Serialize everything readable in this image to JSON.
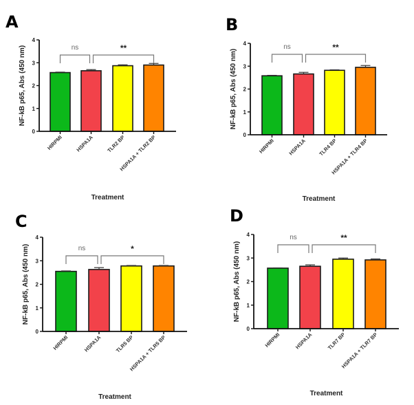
{
  "chart_data": [
    {
      "type": "bar",
      "panel": "A",
      "categories": [
        "HIRPMI",
        "HSPA1A",
        "TLR2 BP",
        "HSPA1A + TLR2 BP"
      ],
      "values": [
        2.57,
        2.65,
        2.87,
        2.9
      ],
      "errors": [
        0.02,
        0.05,
        0.04,
        0.07
      ],
      "colors": [
        "#0cb81a",
        "#f2424a",
        "#ffff00",
        "#ff8400"
      ],
      "xlabel": "Treatment",
      "ylabel": "NF-kB p65, Abs (450 nm)",
      "ylim": [
        0,
        4
      ],
      "yticks": [
        "0",
        "1",
        "2",
        "3",
        "4"
      ],
      "significance": [
        {
          "from": 0,
          "to": 1,
          "label": "ns"
        },
        {
          "from": 1,
          "to": 3,
          "label": "**"
        }
      ]
    },
    {
      "type": "bar",
      "panel": "B",
      "categories": [
        "HIRPMI",
        "HSPA1A",
        "TLR4 BP",
        "HSPA1A + TLR4 BP"
      ],
      "values": [
        2.58,
        2.66,
        2.82,
        2.95
      ],
      "errors": [
        0.02,
        0.07,
        0.02,
        0.08
      ],
      "colors": [
        "#0cb81a",
        "#f2424a",
        "#ffff00",
        "#ff8400"
      ],
      "xlabel": "Treatment",
      "ylabel": "NF-kB p65, Abs (450 nm)",
      "ylim": [
        0,
        4
      ],
      "yticks": [
        "0",
        "1",
        "2",
        "3",
        "4"
      ],
      "significance": [
        {
          "from": 0,
          "to": 1,
          "label": "ns"
        },
        {
          "from": 1,
          "to": 3,
          "label": "**"
        }
      ]
    },
    {
      "type": "bar",
      "panel": "C",
      "categories": [
        "HIRPMI",
        "HSPA1A",
        "TLR5 BP",
        "HSPA1A + TLR5 BP"
      ],
      "values": [
        2.55,
        2.63,
        2.78,
        2.78
      ],
      "errors": [
        0.02,
        0.08,
        0.02,
        0.02
      ],
      "colors": [
        "#0cb81a",
        "#f2424a",
        "#ffff00",
        "#ff8400"
      ],
      "xlabel": "Treatment",
      "ylabel": "NF-kB p65, Abs (450 nm)",
      "ylim": [
        0,
        4
      ],
      "yticks": [
        "0",
        "1",
        "2",
        "3",
        "4"
      ],
      "significance": [
        {
          "from": 0,
          "to": 1,
          "label": "ns"
        },
        {
          "from": 1,
          "to": 3,
          "label": "*"
        }
      ]
    },
    {
      "type": "bar",
      "panel": "D",
      "categories": [
        "HIRPMI",
        "HSPA1A",
        "TLR7 BP",
        "HSPA1A + TLR7 BP"
      ],
      "values": [
        2.57,
        2.65,
        2.95,
        2.92
      ],
      "errors": [
        0.01,
        0.06,
        0.05,
        0.04
      ],
      "colors": [
        "#0cb81a",
        "#f2424a",
        "#ffff00",
        "#ff8400"
      ],
      "xlabel": "Treatment",
      "ylabel": "NF-kB p65, Abs (450 nm)",
      "ylim": [
        0,
        4
      ],
      "yticks": [
        "0",
        "1",
        "2",
        "3",
        "4"
      ],
      "significance": [
        {
          "from": 0,
          "to": 1,
          "label": "ns"
        },
        {
          "from": 1,
          "to": 3,
          "label": "**"
        }
      ]
    }
  ]
}
